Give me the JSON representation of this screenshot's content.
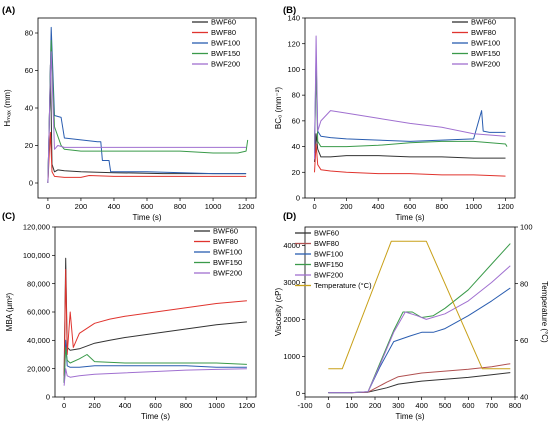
{
  "chart_data": [
    {
      "panel": "(A)",
      "type": "line",
      "xlabel": "Time (s)",
      "ylabel": "Hₘₐₓ (mm)",
      "xlim": [
        -60,
        1260
      ],
      "ylim": [
        -8,
        88
      ],
      "xticks": [
        0,
        200,
        400,
        600,
        800,
        1000,
        1200
      ],
      "yticks": [
        0,
        20,
        40,
        60,
        80
      ],
      "legend_position": "top-right",
      "series": [
        {
          "name": "BWF60",
          "color": "#333333",
          "x": [
            0,
            8,
            15,
            25,
            40,
            60,
            100,
            200,
            400,
            700,
            1000,
            1200
          ],
          "y": [
            0,
            30,
            63,
            10,
            6,
            7,
            6.5,
            6,
            5.5,
            5,
            5,
            5
          ]
        },
        {
          "name": "BWF80",
          "color": "#e0342e",
          "x": [
            0,
            8,
            15,
            25,
            40,
            100,
            200,
            250,
            400,
            600,
            1000,
            1200
          ],
          "y": [
            0,
            15,
            27,
            6,
            3.5,
            3,
            3,
            4,
            3.5,
            3.5,
            3.5,
            3.5
          ]
        },
        {
          "name": "BWF100",
          "color": "#2a5db0",
          "x": [
            0,
            10,
            20,
            40,
            80,
            100,
            200,
            300,
            320,
            330,
            370,
            380,
            600,
            1000,
            1200
          ],
          "y": [
            0,
            40,
            83,
            36,
            35,
            24,
            23,
            22,
            22,
            12,
            12,
            6,
            6,
            5,
            5
          ]
        },
        {
          "name": "BWF150",
          "color": "#3a9a4a",
          "x": [
            0,
            10,
            20,
            40,
            80,
            100,
            200,
            300,
            500,
            800,
            1000,
            1150,
            1200,
            1210
          ],
          "y": [
            0,
            40,
            76,
            30,
            20,
            18,
            17,
            17,
            17,
            17,
            16,
            16,
            17,
            23
          ]
        },
        {
          "name": "BWF200",
          "color": "#a070d0",
          "x": [
            0,
            10,
            20,
            40,
            60,
            100,
            200,
            500,
            800,
            1000,
            1200
          ],
          "y": [
            0,
            40,
            70,
            18,
            20,
            19,
            19,
            19,
            19,
            19,
            19
          ]
        }
      ]
    },
    {
      "panel": "(B)",
      "type": "line",
      "xlabel": "Time (s)",
      "ylabel": "BC₀ (mm⁻²)",
      "xlim": [
        -60,
        1260
      ],
      "ylim": [
        0,
        140
      ],
      "xticks": [
        0,
        200,
        400,
        600,
        800,
        1000,
        1200
      ],
      "yticks": [
        0,
        20,
        40,
        60,
        80,
        100,
        120,
        140
      ],
      "legend_position": "top-right",
      "series": [
        {
          "name": "BWF60",
          "color": "#333333",
          "x": [
            0,
            10,
            20,
            40,
            100,
            200,
            400,
            600,
            800,
            1000,
            1200
          ],
          "y": [
            28,
            50,
            38,
            32,
            32,
            33,
            33,
            32,
            32,
            31,
            31
          ]
        },
        {
          "name": "BWF80",
          "color": "#e0342e",
          "x": [
            0,
            10,
            20,
            40,
            100,
            200,
            400,
            600,
            800,
            1000,
            1200
          ],
          "y": [
            20,
            42,
            26,
            22,
            21,
            20,
            19,
            19,
            18,
            18,
            17
          ]
        },
        {
          "name": "BWF100",
          "color": "#2a5db0",
          "x": [
            0,
            10,
            20,
            40,
            100,
            200,
            400,
            600,
            800,
            1000,
            1050,
            1060,
            1100,
            1200
          ],
          "y": [
            40,
            110,
            52,
            48,
            47,
            46,
            45,
            44,
            45,
            46,
            68,
            52,
            51,
            51
          ]
        },
        {
          "name": "BWF150",
          "color": "#3a9a4a",
          "x": [
            0,
            10,
            20,
            40,
            100,
            200,
            400,
            600,
            800,
            1000,
            1200,
            1210
          ],
          "y": [
            35,
            100,
            44,
            40,
            40,
            40,
            41,
            43,
            44,
            44,
            42,
            40
          ]
        },
        {
          "name": "BWF200",
          "color": "#a070d0",
          "x": [
            0,
            10,
            20,
            40,
            100,
            200,
            400,
            600,
            800,
            1000,
            1200
          ],
          "y": [
            30,
            126,
            52,
            60,
            68,
            66,
            62,
            58,
            55,
            50,
            48
          ]
        }
      ]
    },
    {
      "panel": "(C)",
      "type": "line",
      "xlabel": "Time (s)",
      "ylabel": "MBA (μm²)",
      "xlim": [
        -60,
        1260
      ],
      "ylim": [
        0,
        120000
      ],
      "xticks": [
        0,
        200,
        400,
        600,
        800,
        1000,
        1200
      ],
      "yticks": [
        0,
        20000,
        40000,
        60000,
        80000,
        100000,
        120000
      ],
      "ytick_labels": [
        "0",
        "20,000",
        "40,000",
        "60,000",
        "80,000",
        "100,000",
        "120,000"
      ],
      "legend_position": "top-right",
      "series": [
        {
          "name": "BWF60",
          "color": "#333333",
          "x": [
            0,
            10,
            20,
            40,
            100,
            200,
            300,
            400,
            600,
            800,
            1000,
            1200
          ],
          "y": [
            15000,
            98000,
            35000,
            33000,
            34000,
            38000,
            40000,
            42000,
            45000,
            48000,
            51000,
            53000
          ]
        },
        {
          "name": "BWF80",
          "color": "#e0342e",
          "x": [
            0,
            10,
            20,
            40,
            60,
            100,
            200,
            300,
            400,
            600,
            800,
            1000,
            1200
          ],
          "y": [
            10000,
            90000,
            30000,
            60000,
            35000,
            45000,
            52000,
            55000,
            57000,
            60000,
            63000,
            66000,
            68000
          ]
        },
        {
          "name": "BWF100",
          "color": "#2a5db0",
          "x": [
            0,
            10,
            20,
            40,
            100,
            200,
            400,
            600,
            800,
            1000,
            1200
          ],
          "y": [
            10000,
            40000,
            22000,
            21000,
            21000,
            22000,
            22000,
            22000,
            22000,
            21000,
            21000
          ]
        },
        {
          "name": "BWF150",
          "color": "#3a9a4a",
          "x": [
            0,
            10,
            20,
            40,
            100,
            150,
            200,
            400,
            600,
            800,
            1000,
            1200
          ],
          "y": [
            10000,
            35000,
            26000,
            24000,
            27000,
            30000,
            25000,
            24000,
            24000,
            24000,
            24000,
            23000
          ]
        },
        {
          "name": "BWF200",
          "color": "#a070d0",
          "x": [
            0,
            10,
            20,
            40,
            100,
            200,
            400,
            600,
            800,
            1000,
            1200
          ],
          "y": [
            8000,
            20000,
            15000,
            14000,
            15000,
            16000,
            17000,
            18000,
            19000,
            19500,
            20000
          ]
        }
      ]
    },
    {
      "panel": "(D)",
      "type": "line",
      "xlabel": "Time (s)",
      "ylabel": "Viscosity (cP)",
      "y2label": "Temperature (°C)",
      "xlim": [
        -100,
        800
      ],
      "ylim": [
        -100,
        4500
      ],
      "y2lim": [
        40,
        100
      ],
      "xticks": [
        -100,
        0,
        100,
        200,
        300,
        400,
        500,
        600,
        700,
        800
      ],
      "yticks": [
        0,
        1000,
        2000,
        3000,
        4000
      ],
      "y2ticks": [
        40,
        60,
        80,
        100
      ],
      "legend_position": "top-left",
      "series": [
        {
          "name": "BWF60",
          "color": "#333333",
          "x": [
            0,
            100,
            170,
            250,
            300,
            400,
            500,
            600,
            700,
            780
          ],
          "y": [
            20,
            20,
            30,
            150,
            250,
            330,
            380,
            430,
            500,
            560
          ]
        },
        {
          "name": "BWF80",
          "color": "#b05050",
          "x": [
            0,
            100,
            170,
            250,
            300,
            400,
            500,
            600,
            700,
            780
          ],
          "y": [
            20,
            20,
            30,
            300,
            450,
            550,
            600,
            650,
            720,
            800
          ]
        },
        {
          "name": "BWF100",
          "color": "#2a5db0",
          "x": [
            0,
            100,
            170,
            220,
            280,
            350,
            400,
            450,
            500,
            600,
            700,
            780
          ],
          "y": [
            20,
            20,
            40,
            700,
            1400,
            1550,
            1650,
            1650,
            1750,
            2100,
            2500,
            2850
          ]
        },
        {
          "name": "BWF150",
          "color": "#3a9a4a",
          "x": [
            0,
            100,
            170,
            220,
            280,
            320,
            360,
            400,
            450,
            500,
            600,
            700,
            780
          ],
          "y": [
            20,
            20,
            40,
            800,
            1700,
            2200,
            2200,
            2050,
            2100,
            2300,
            2800,
            3500,
            4050
          ]
        },
        {
          "name": "BWF200",
          "color": "#a070d0",
          "x": [
            0,
            100,
            170,
            220,
            280,
            330,
            380,
            420,
            500,
            600,
            700,
            780
          ],
          "y": [
            20,
            20,
            40,
            750,
            1650,
            2200,
            2100,
            2000,
            2150,
            2500,
            3000,
            3450
          ]
        },
        {
          "name": "Temperature (°C)",
          "color": "#c8a018",
          "axis": "right",
          "x": [
            0,
            60,
            270,
            420,
            660,
            780
          ],
          "y": [
            50,
            50,
            95,
            95,
            50,
            50
          ]
        }
      ]
    }
  ]
}
